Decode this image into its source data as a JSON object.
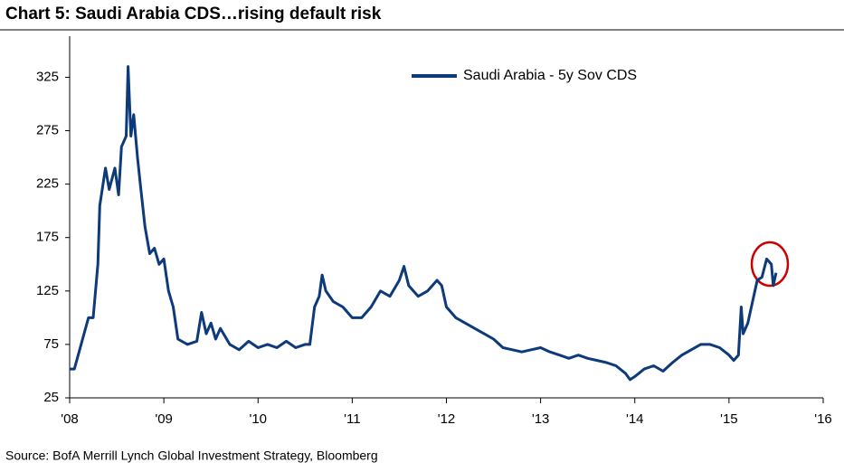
{
  "chart_data": {
    "type": "line",
    "title": "Chart 5: Saudi Arabia CDS…rising default risk",
    "source": "Source: BofA Merrill Lynch Global Investment Strategy, Bloomberg",
    "x": [
      2008.0,
      2008.05,
      2008.2,
      2008.25,
      2008.3,
      2008.32,
      2008.38,
      2008.42,
      2008.48,
      2008.52,
      2008.55,
      2008.6,
      2008.62,
      2008.65,
      2008.68,
      2008.72,
      2008.75,
      2008.8,
      2008.85,
      2008.9,
      2008.95,
      2009.0,
      2009.05,
      2009.1,
      2009.15,
      2009.25,
      2009.35,
      2009.4,
      2009.45,
      2009.5,
      2009.55,
      2009.6,
      2009.7,
      2009.8,
      2009.9,
      2010.0,
      2010.1,
      2010.2,
      2010.3,
      2010.4,
      2010.5,
      2010.55,
      2010.6,
      2010.65,
      2010.68,
      2010.72,
      2010.8,
      2010.9,
      2011.0,
      2011.1,
      2011.2,
      2011.3,
      2011.4,
      2011.5,
      2011.55,
      2011.6,
      2011.7,
      2011.8,
      2011.9,
      2011.95,
      2012.0,
      2012.1,
      2012.2,
      2012.3,
      2012.4,
      2012.5,
      2012.6,
      2012.7,
      2012.8,
      2012.9,
      2013.0,
      2013.1,
      2013.2,
      2013.3,
      2013.4,
      2013.5,
      2013.6,
      2013.7,
      2013.8,
      2013.9,
      2013.95,
      2014.0,
      2014.1,
      2014.2,
      2014.3,
      2014.4,
      2014.5,
      2014.6,
      2014.7,
      2014.8,
      2014.9,
      2015.0,
      2015.05,
      2015.1,
      2015.13,
      2015.15,
      2015.2,
      2015.25,
      2015.3,
      2015.35,
      2015.4,
      2015.45,
      2015.47,
      2015.5
    ],
    "series": [
      {
        "name": "Saudi Arabia - 5y Sov CDS",
        "color": "#0d3a7a",
        "values": [
          52,
          52,
          100,
          100,
          150,
          205,
          240,
          220,
          240,
          215,
          260,
          270,
          335,
          270,
          290,
          250,
          225,
          185,
          160,
          165,
          150,
          155,
          125,
          110,
          80,
          75,
          78,
          105,
          85,
          95,
          80,
          90,
          75,
          70,
          78,
          72,
          75,
          72,
          78,
          72,
          75,
          75,
          110,
          120,
          140,
          125,
          115,
          110,
          100,
          100,
          110,
          125,
          120,
          135,
          148,
          130,
          120,
          125,
          135,
          130,
          110,
          100,
          95,
          90,
          85,
          80,
          72,
          70,
          68,
          70,
          72,
          68,
          65,
          62,
          65,
          62,
          60,
          58,
          55,
          48,
          42,
          45,
          52,
          55,
          50,
          58,
          65,
          70,
          75,
          75,
          72,
          65,
          60,
          65,
          110,
          85,
          95,
          115,
          135,
          138,
          155,
          150,
          130,
          142
        ]
      }
    ],
    "xlim": [
      2008,
      2016
    ],
    "xticks": [
      {
        "value": 2008,
        "label": "'08"
      },
      {
        "value": 2009,
        "label": "'09"
      },
      {
        "value": 2010,
        "label": "'10"
      },
      {
        "value": 2011,
        "label": "'11"
      },
      {
        "value": 2012,
        "label": "'12"
      },
      {
        "value": 2013,
        "label": "'13"
      },
      {
        "value": 2014,
        "label": "'14"
      },
      {
        "value": 2015,
        "label": "'15"
      },
      {
        "value": 2016,
        "label": "'16"
      }
    ],
    "ylim": [
      25,
      355
    ],
    "yticks": [
      25,
      75,
      125,
      175,
      225,
      275,
      325
    ]
  }
}
